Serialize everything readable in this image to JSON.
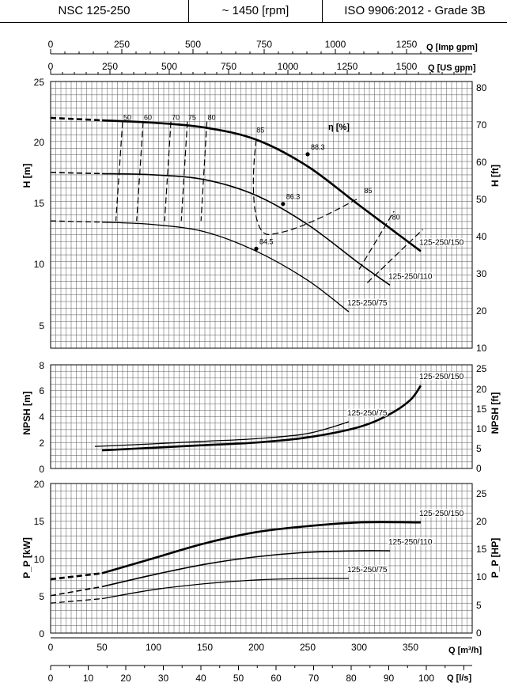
{
  "header": {
    "model": "NSC 125-250",
    "speed": "~ 1450 [rpm]",
    "standard": "ISO 9906:2012 - Grade 3B"
  },
  "axes": {
    "q_imp_label": "Q [Imp gpm]",
    "q_us_label": "Q [US gpm]",
    "q_m3h_label": "Q [m³/h]",
    "q_ls_label": "Q [l/s]",
    "h_m_label": "H [m]",
    "h_ft_label": "H [ft]",
    "npsh_m_label": "NPSH [m]",
    "npsh_ft_label": "NPSH [ft]",
    "p_kw_label": "P_P [kW]",
    "p_hp_label": "P_P [HP]",
    "eta_label": "η [%]"
  },
  "chart_data": [
    {
      "type": "line",
      "title": "",
      "xlabel": "Q [m³/h]",
      "ylabel": "H [m]",
      "xlim": [
        0,
        375
      ],
      "ylim": [
        3,
        25
      ],
      "series": [
        {
          "name": "125-250/150",
          "x": [
            0,
            50,
            100,
            150,
            200,
            250,
            300,
            360
          ],
          "y": [
            22.0,
            21.8,
            21.6,
            21.2,
            20.2,
            18.0,
            14.8,
            11.0
          ]
        },
        {
          "name": "125-250/110",
          "x": [
            0,
            50,
            100,
            150,
            200,
            250,
            300,
            330
          ],
          "y": [
            17.5,
            17.4,
            17.3,
            16.9,
            15.6,
            13.2,
            10.0,
            8.2
          ]
        },
        {
          "name": "125-250/75",
          "x": [
            0,
            50,
            100,
            150,
            200,
            250,
            290
          ],
          "y": [
            13.5,
            13.4,
            13.2,
            12.6,
            11.0,
            8.6,
            6.0
          ]
        }
      ],
      "efficiency_labels": [
        "50",
        "60",
        "70",
        "75",
        "80",
        "85",
        "88.3",
        "86.3",
        "85",
        "84.5",
        "80"
      ]
    },
    {
      "type": "line",
      "xlabel": "Q [m³/h]",
      "ylabel": "NPSH [m]",
      "xlim": [
        0,
        375
      ],
      "ylim": [
        0,
        8
      ],
      "series": [
        {
          "name": "125-250/150",
          "x": [
            50,
            100,
            150,
            200,
            250,
            300,
            330,
            350,
            360
          ],
          "y": [
            1.4,
            1.6,
            1.8,
            2.0,
            2.4,
            3.2,
            4.2,
            5.3,
            6.4
          ]
        },
        {
          "name": "125-250/75",
          "x": [
            43,
            100,
            150,
            200,
            250,
            290
          ],
          "y": [
            1.7,
            1.9,
            2.1,
            2.3,
            2.7,
            3.6
          ]
        }
      ]
    },
    {
      "type": "line",
      "xlabel": "Q [m³/h]",
      "ylabel": "P_P [kW]",
      "xlim": [
        0,
        375
      ],
      "ylim": [
        0,
        20
      ],
      "series": [
        {
          "name": "125-250/150",
          "x": [
            0,
            50,
            100,
            150,
            200,
            250,
            300,
            360
          ],
          "y": [
            7.2,
            8.0,
            10.0,
            12.0,
            13.5,
            14.3,
            14.8,
            14.8
          ]
        },
        {
          "name": "125-250/110",
          "x": [
            0,
            50,
            100,
            150,
            200,
            250,
            300,
            330
          ],
          "y": [
            5.0,
            6.2,
            7.8,
            9.2,
            10.2,
            10.8,
            11.0,
            11.0
          ]
        },
        {
          "name": "125-250/75",
          "x": [
            0,
            50,
            100,
            150,
            200,
            250,
            290
          ],
          "y": [
            4.0,
            4.6,
            5.8,
            6.6,
            7.1,
            7.3,
            7.3
          ]
        }
      ]
    }
  ],
  "ticks": {
    "imp": [
      "0",
      "250",
      "500",
      "750",
      "1000",
      "1250"
    ],
    "us": [
      "0",
      "250",
      "500",
      "750",
      "1000",
      "1250",
      "1500"
    ],
    "m3h": [
      "0",
      "50",
      "100",
      "150",
      "200",
      "250",
      "300",
      "350"
    ],
    "ls": [
      "0",
      "10",
      "20",
      "30",
      "40",
      "50",
      "60",
      "70",
      "80",
      "90",
      "100"
    ],
    "h_m": [
      "5",
      "10",
      "15",
      "20",
      "25"
    ],
    "h_ft": [
      "10",
      "20",
      "30",
      "40",
      "50",
      "60",
      "70",
      "80"
    ],
    "npsh_m": [
      "0",
      "2",
      "4",
      "6",
      "8"
    ],
    "npsh_ft": [
      "0",
      "5",
      "10",
      "15",
      "20",
      "25"
    ],
    "p_kw": [
      "0",
      "5",
      "10",
      "15",
      "20"
    ],
    "p_hp": [
      "0",
      "5",
      "10",
      "15",
      "20",
      "25"
    ]
  }
}
